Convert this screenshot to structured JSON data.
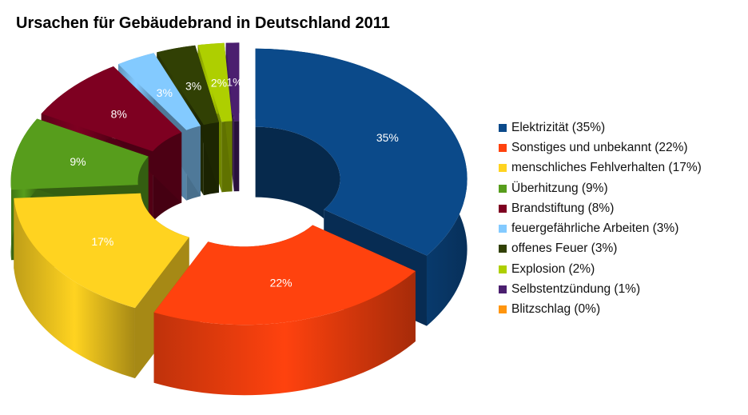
{
  "chart_data": {
    "type": "pie",
    "style": "3d-exploded-donut",
    "title": "Ursachen für Gebäudebrand in Deutschland 2011",
    "legend_position": "right",
    "slices": [
      {
        "label": "Elektrizität (35%)",
        "value": 35,
        "data_label": "35%",
        "color": "#0b4a8a"
      },
      {
        "label": "Sonstiges und unbekannt (22%)",
        "value": 22,
        "data_label": "22%",
        "color": "#ff420e"
      },
      {
        "label": "menschliches Fehlverhalten (17%)",
        "value": 17,
        "data_label": "17%",
        "color": "#ffd320"
      },
      {
        "label": "Überhitzung (9%)",
        "value": 9,
        "data_label": "9%",
        "color": "#579d1c"
      },
      {
        "label": "Brandstiftung (8%)",
        "value": 8,
        "data_label": "8%",
        "color": "#7e0021"
      },
      {
        "label": "feuergefährliche Arbeiten (3%)",
        "value": 3,
        "data_label": "3%",
        "color": "#83caff"
      },
      {
        "label": "offenes Feuer (3%)",
        "value": 3,
        "data_label": "3%",
        "color": "#314004"
      },
      {
        "label": "Explosion (2%)",
        "value": 2,
        "data_label": "2%",
        "color": "#aecf00"
      },
      {
        "label": "Selbstentzündung (1%)",
        "value": 1,
        "data_label": "1%",
        "color": "#4b1f6f"
      },
      {
        "label": "Blitzschlag (0%)",
        "value": 0,
        "data_label": "",
        "color": "#ff950e"
      }
    ]
  }
}
